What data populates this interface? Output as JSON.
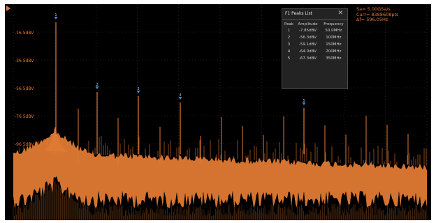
{
  "y_axis_labels": [
    "-16.5dBV",
    "-36.5dBV",
    "-56.5dBV",
    "-76.5dBV",
    "-96.5dBV"
  ],
  "peaks_list": {
    "title": "F1 Peaks List",
    "columns": [
      "Peak",
      "Amplitude",
      "Frequency"
    ],
    "rows": [
      {
        "peak": "1",
        "amplitude": "-7.85dBV",
        "frequency": "50.0MHz"
      },
      {
        "peak": "2",
        "amplitude": "-56.3dBV",
        "frequency": "100MHz"
      },
      {
        "peak": "3",
        "amplitude": "-59.1dBV",
        "frequency": "150MHz"
      },
      {
        "peak": "4",
        "amplitude": "-64.0dBV",
        "frequency": "200MHz"
      },
      {
        "peak": "5",
        "amplitude": "-67.3dBV",
        "frequency": "350MHz"
      }
    ]
  },
  "acquisition_info": {
    "sample_rate": "Sa= 5.00GSa/s",
    "curr": "Curr= 8388608pts",
    "delta_f": "Δf= 596.05Hz"
  },
  "peak_markers": [
    "1",
    "2",
    "3",
    "4",
    "5"
  ],
  "colors": {
    "trace": "#e07a33",
    "marker": "#3d8fd6",
    "grid": "#3a3a3a"
  }
}
